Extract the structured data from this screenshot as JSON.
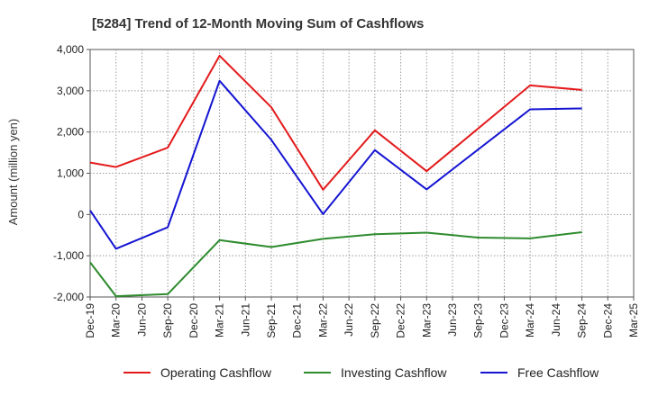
{
  "chart_data": {
    "type": "line",
    "title": "[5284]  Trend of 12-Month Moving Sum of Cashflows",
    "xlabel": "",
    "ylabel": "Amount (million yen)",
    "ylim": [
      -2000,
      4000
    ],
    "yticks": [
      -2000,
      -1000,
      0,
      1000,
      2000,
      3000,
      4000
    ],
    "ytick_labels": [
      "-2,000",
      "-1,000",
      "0",
      "1,000",
      "2,000",
      "3,000",
      "4,000"
    ],
    "categories": [
      "Dec-19",
      "Mar-20",
      "Jun-20",
      "Sep-20",
      "Dec-20",
      "Mar-21",
      "Jun-21",
      "Sep-21",
      "Dec-21",
      "Mar-22",
      "Jun-22",
      "Sep-22",
      "Dec-22",
      "Mar-23",
      "Jun-23",
      "Sep-23",
      "Dec-23",
      "Mar-24",
      "Jun-24",
      "Sep-24",
      "Dec-24",
      "Mar-25"
    ],
    "grid": true,
    "legend_position": "bottom",
    "series": [
      {
        "name": "Operating Cashflow",
        "color": "#e31a1c",
        "values": [
          1260,
          1150,
          null,
          1620,
          null,
          3850,
          null,
          2600,
          null,
          600,
          null,
          2040,
          null,
          1050,
          null,
          null,
          null,
          3130,
          null,
          3020,
          null,
          null
        ]
      },
      {
        "name": "Investing Cashflow",
        "color": "#2e8b2e",
        "values": [
          -1160,
          -1980,
          null,
          -1930,
          null,
          -620,
          null,
          -790,
          null,
          -590,
          null,
          -480,
          null,
          -440,
          null,
          -560,
          null,
          -580,
          null,
          -430,
          null,
          null
        ]
      },
      {
        "name": "Free Cashflow",
        "color": "#1414d2",
        "values": [
          100,
          -830,
          null,
          -310,
          null,
          3240,
          null,
          1810,
          null,
          10,
          null,
          1560,
          null,
          610,
          null,
          null,
          null,
          2550,
          null,
          2570,
          null,
          null
        ]
      }
    ]
  }
}
